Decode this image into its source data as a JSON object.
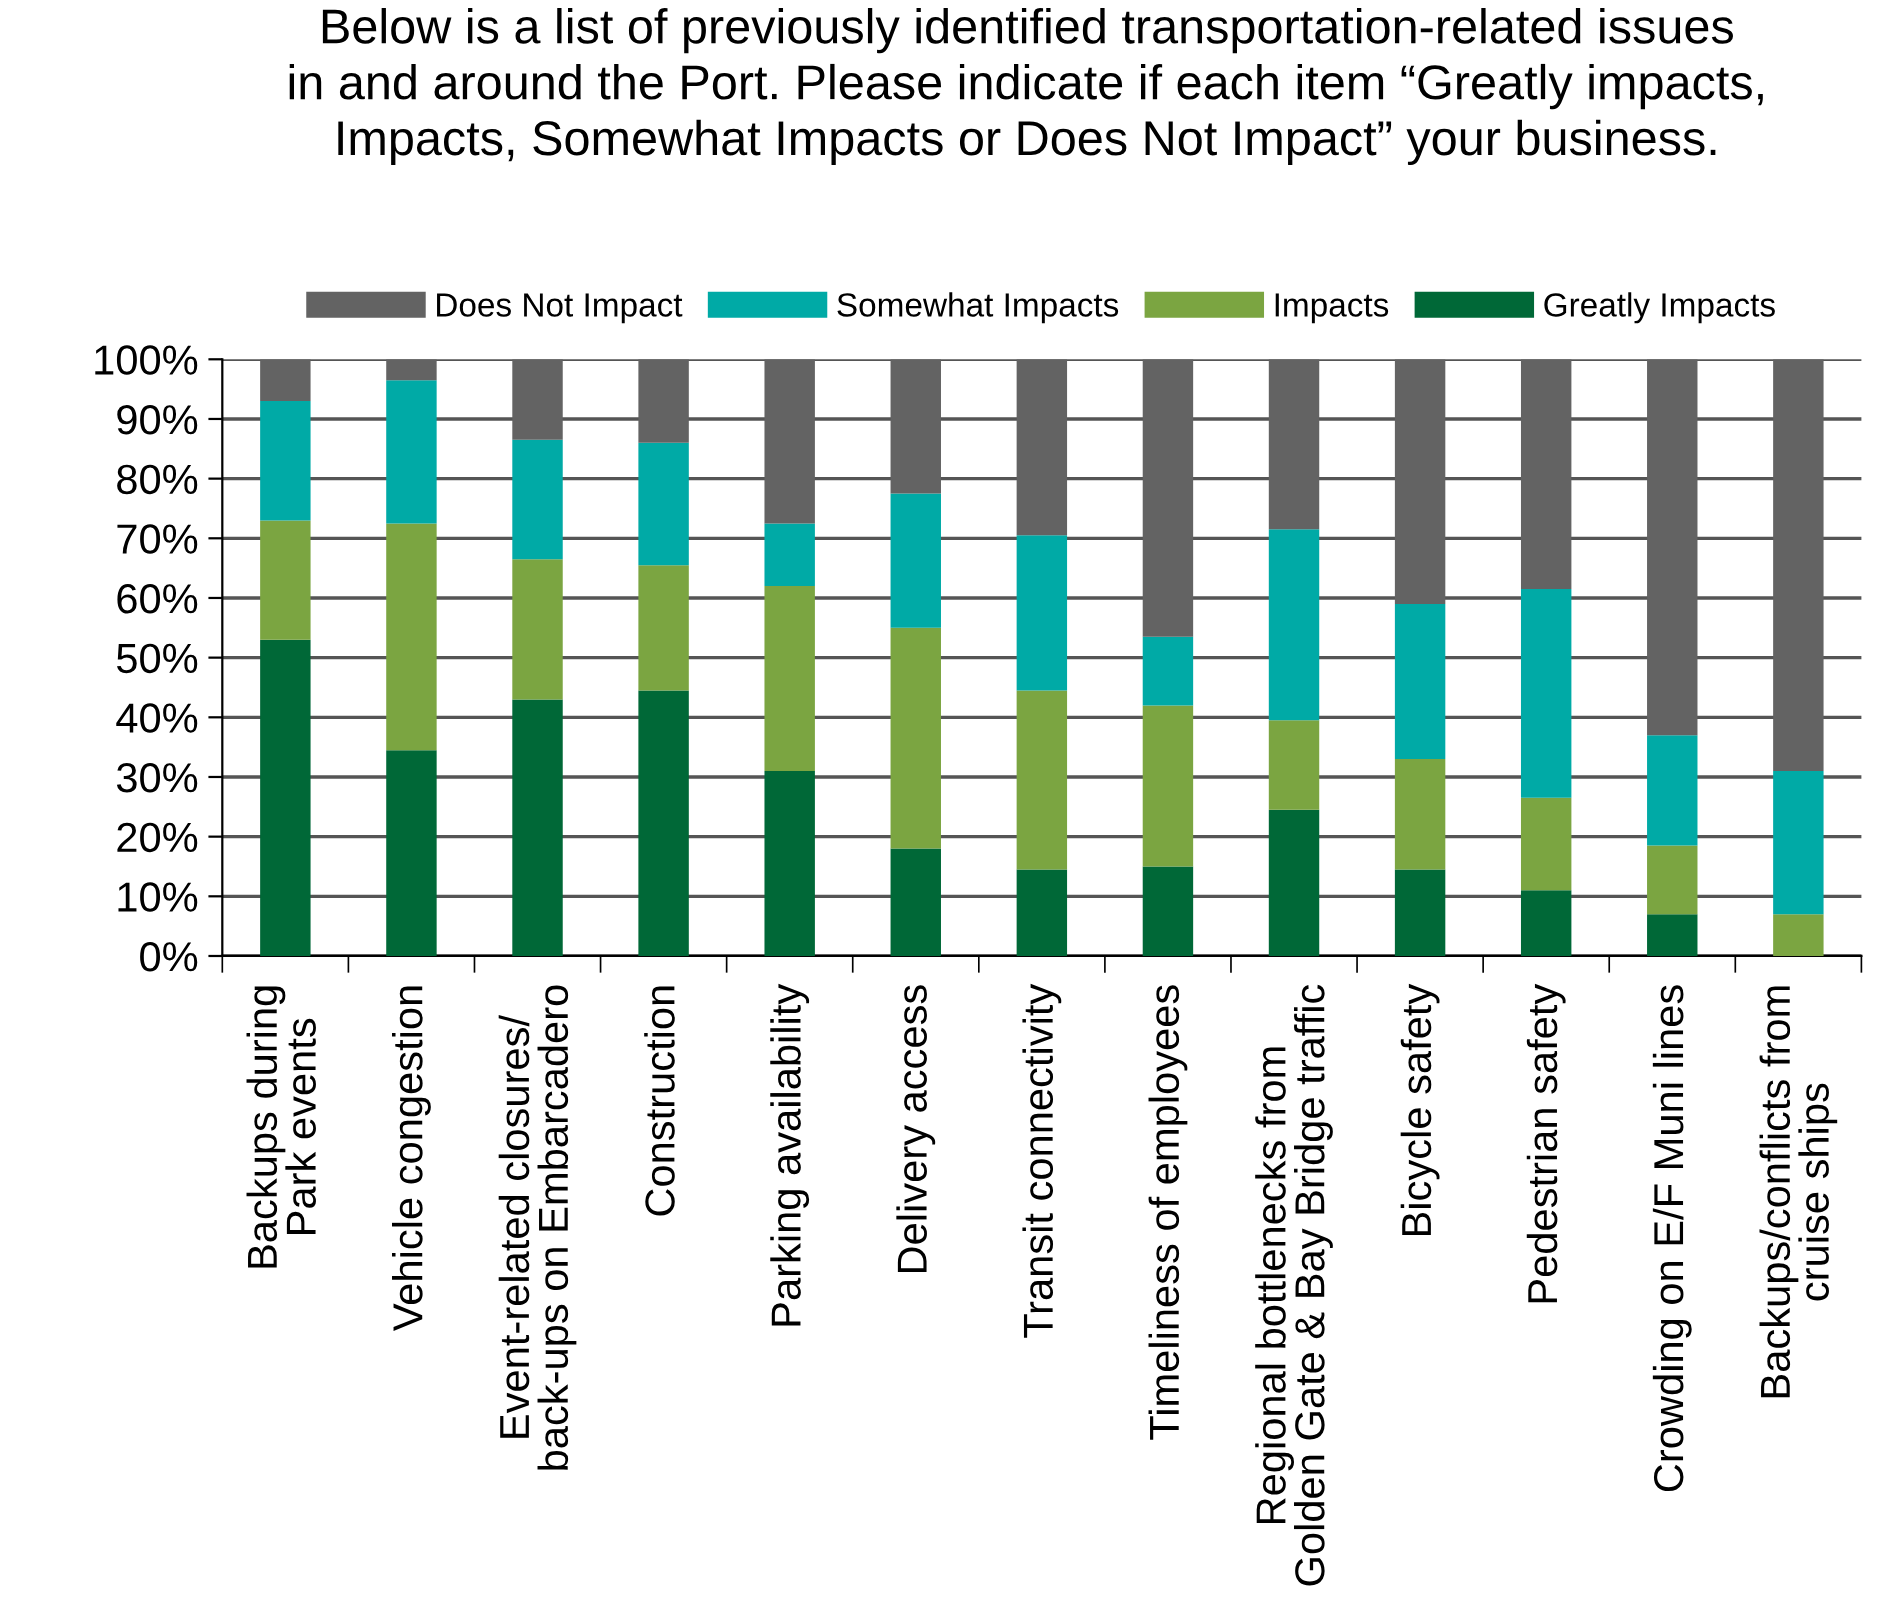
{
  "chart_data": {
    "type": "bar",
    "stacked": true,
    "title": "Below is a list of previously identified transportation-related issues\nin and around the Port. Please indicate if each item “Greatly impacts,\nImpacts, Somewhat Impacts or Does Not Impact” your business.",
    "categories": [
      "Backups during\nPark events",
      "Vehicle congestion",
      "Event-related closures/\nback-ups on Embarcadero",
      "Construction",
      "Parking availability",
      "Delivery access",
      "Transit connectivity",
      "Timeliness of employees",
      "Regional bottlenecks from\nGolden Gate & Bay Bridge traffic",
      "Bicycle safety",
      "Pedestrian safety",
      "Crowding on E/F Muni lines",
      "Backups/conflicts from\ncruise ships"
    ],
    "series": [
      {
        "name": "Greatly Impacts",
        "color": "#006837",
        "values": [
          53,
          34.5,
          43,
          44.5,
          31,
          18,
          14.5,
          15,
          24.5,
          14.5,
          11,
          7,
          0
        ]
      },
      {
        "name": "Impacts",
        "color": "#7ba541",
        "values": [
          20,
          38,
          23.5,
          21,
          31,
          37,
          30,
          27,
          15,
          18.5,
          15.5,
          11.5,
          7
        ]
      },
      {
        "name": "Somewhat Impacts",
        "color": "#00aaa6",
        "values": [
          20,
          24,
          20,
          20.5,
          10.5,
          22.5,
          26,
          11.5,
          32,
          26,
          35,
          18.5,
          24
        ]
      },
      {
        "name": "Does Not Impact",
        "color": "#636363",
        "values": [
          7,
          3.5,
          13.5,
          14,
          27.5,
          22.5,
          29.5,
          46.5,
          28.5,
          41,
          38.5,
          63,
          69
        ]
      }
    ],
    "ylim": [
      0,
      100
    ],
    "yticks": [
      {
        "value": 0,
        "label": "0%"
      },
      {
        "value": 10,
        "label": "10%"
      },
      {
        "value": 20,
        "label": "20%"
      },
      {
        "value": 30,
        "label": "30%"
      },
      {
        "value": 40,
        "label": "40%"
      },
      {
        "value": 50,
        "label": "50%"
      },
      {
        "value": 60,
        "label": "60%"
      },
      {
        "value": 70,
        "label": "70%"
      },
      {
        "value": 80,
        "label": "80%"
      },
      {
        "value": 90,
        "label": "90%"
      },
      {
        "value": 100,
        "label": "100%"
      }
    ],
    "grid": "y",
    "legend": "top"
  }
}
